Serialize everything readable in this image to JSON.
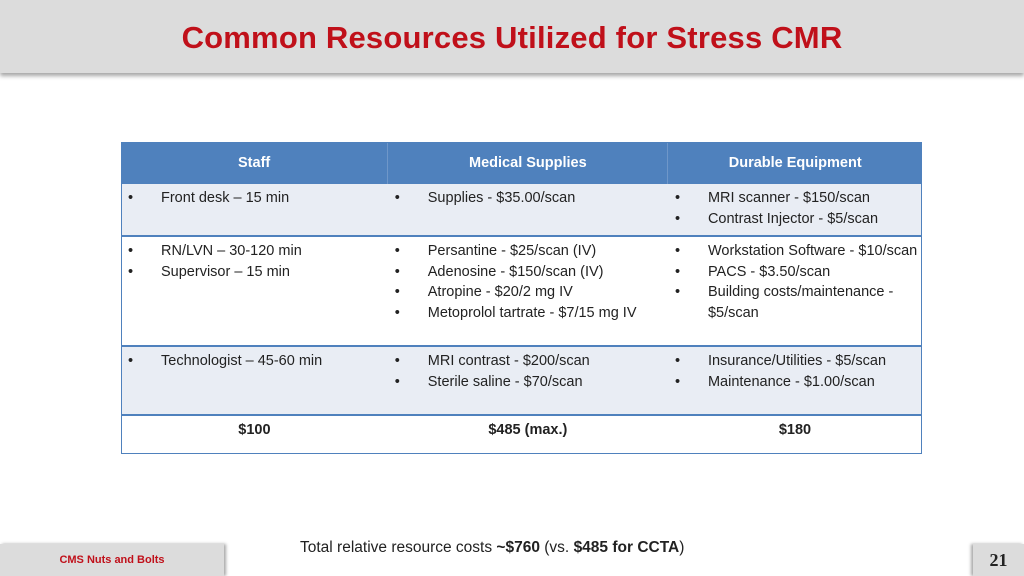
{
  "title": "Common Resources Utilized for Stress CMR",
  "table": {
    "headers": [
      "Staff",
      "Medical Supplies",
      "Durable Equipment"
    ],
    "rows": [
      {
        "staff": [
          "Front desk – 15 min"
        ],
        "supplies": [
          "Supplies - $35.00/scan"
        ],
        "equipment": [
          "MRI scanner - $150/scan",
          "Contrast Injector - $5/scan"
        ]
      },
      {
        "staff": [
          "RN/LVN – 30-120 min",
          "Supervisor – 15 min"
        ],
        "supplies": [
          "Persantine - $25/scan (IV)",
          "Adenosine - $150/scan (IV)",
          "Atropine - $20/2 mg IV",
          "Metoprolol tartrate - $7/15 mg IV"
        ],
        "equipment": [
          "Workstation Software - $10/scan",
          "PACS - $3.50/scan",
          "Building costs/maintenance - $5/scan"
        ]
      },
      {
        "staff": [
          "Technologist – 45-60 min"
        ],
        "supplies": [
          "MRI contrast - $200/scan",
          "Sterile saline - $70/scan"
        ],
        "equipment": [
          "Insurance/Utilities - $5/scan",
          "Maintenance - $1.00/scan"
        ]
      }
    ],
    "totals": [
      "$100",
      "$485 (max.)",
      "$180"
    ]
  },
  "footer": {
    "prefix": "Total relative resource costs ",
    "total": "~$760",
    "mid": " (vs. ",
    "compare": "$485 for CCTA",
    "suffix": ")"
  },
  "brand_label": "CMS Nuts and Bolts",
  "page_number": "21",
  "colors": {
    "title": "#c0101a",
    "header": "#4f81bd",
    "band": "#e9edf4",
    "bar": "#dcdcdc"
  }
}
